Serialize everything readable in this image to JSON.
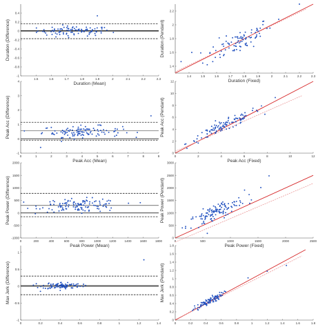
{
  "chart_data": [
    {
      "type": "scatter",
      "variant": "bland-altman",
      "xlabel": "Duration (Mean)",
      "ylabel": "Duration (Difference)",
      "xlim": [
        1.4,
        2.3
      ],
      "ylim": [
        -1.0,
        0.6
      ],
      "xticks": [
        1.5,
        1.6,
        1.7,
        1.8,
        1.9,
        2.0,
        2.1,
        2.2,
        2.3
      ],
      "xtick_labels": [
        "1.5",
        "1.6",
        "1.7",
        "1.8",
        "1.9",
        "2",
        "2.1",
        "2.2",
        "2.3"
      ],
      "yticks": [
        -1.0,
        -0.8,
        -0.6,
        -0.4,
        -0.2,
        0.0,
        0.2,
        0.4
      ],
      "ytick_labels": [
        "-1",
        "-0.8",
        "-0.6",
        "-0.4",
        "-0.2",
        "0",
        "0.2",
        "0.4"
      ],
      "lines": {
        "zero": 0,
        "mean": 0.01,
        "upper": 0.16,
        "lower": -0.17
      },
      "points": {
        "center_x": 1.75,
        "spread_x": 0.12,
        "center_y": 0.0,
        "spread_y": 0.055,
        "count": 90,
        "outliers": [
          [
            1.9,
            0.34
          ],
          [
            1.57,
            -0.09
          ],
          [
            1.63,
            -0.13
          ]
        ]
      }
    },
    {
      "type": "scatter",
      "variant": "correlation",
      "xlabel": "Duration (Fixed)",
      "ylabel": "Duration (Pendant)",
      "xlim": [
        1.3,
        2.3
      ],
      "ylim": [
        1.3,
        2.3
      ],
      "xticks": [
        1.4,
        1.5,
        1.6,
        1.7,
        1.8,
        1.9,
        2.0,
        2.1,
        2.2,
        2.3
      ],
      "xtick_labels": [
        "1.4",
        "1.5",
        "1.6",
        "1.7",
        "1.8",
        "1.9",
        "2",
        "2.1",
        "2.2",
        "2.3"
      ],
      "yticks": [
        1.4,
        1.6,
        1.8,
        2.0,
        2.2
      ],
      "ytick_labels": [
        "1.4",
        "1.6",
        "1.8",
        "2",
        "2.2"
      ],
      "identity_line": [
        [
          1.3,
          1.3
        ],
        [
          2.3,
          2.3
        ]
      ],
      "fit_line": [
        [
          1.3,
          1.32
        ],
        [
          2.25,
          2.23
        ]
      ],
      "points": {
        "center_x": 1.76,
        "spread_x": 0.12,
        "center_y": 1.76,
        "spread_y": 0.14,
        "corr": 0.8,
        "count": 90,
        "outliers": [
          [
            2.2,
            2.32
          ],
          [
            2.05,
            2.08
          ],
          [
            1.42,
            1.6
          ]
        ]
      }
    },
    {
      "type": "scatter",
      "variant": "bland-altman",
      "xlabel": "Peak Acc (Mean)",
      "ylabel": "Peak Acc (Difference)",
      "xlim": [
        0,
        9
      ],
      "ylim": [
        -1.0,
        4.0
      ],
      "xticks": [
        0,
        1,
        2,
        3,
        4,
        5,
        6,
        7,
        8,
        9
      ],
      "xtick_labels": [
        "0",
        "1",
        "2",
        "3",
        "4",
        "5",
        "6",
        "7",
        "8",
        "9"
      ],
      "yticks": [
        -1,
        0,
        1,
        2,
        3,
        4
      ],
      "ytick_labels": [
        "-1",
        "0",
        "1",
        "2",
        "3",
        "4"
      ],
      "lines": {
        "zero": 0,
        "mean": 0.55,
        "upper": 1.15,
        "lower": -0.1
      },
      "points": {
        "center_x": 4.0,
        "spread_x": 1.3,
        "center_y": 0.5,
        "spread_y": 0.2,
        "count": 110,
        "outliers": [
          [
            8.5,
            1.6
          ],
          [
            1.3,
            -0.6
          ],
          [
            3.4,
            0.2
          ]
        ]
      }
    },
    {
      "type": "scatter",
      "variant": "correlation",
      "xlabel": "Peak Acc (Fixed)",
      "ylabel": "Peak Acc (Pendant)",
      "xlim": [
        0,
        12
      ],
      "ylim": [
        0,
        12
      ],
      "xticks": [
        0,
        2,
        4,
        6,
        8,
        10,
        12
      ],
      "xtick_labels": [
        "0",
        "2",
        "4",
        "6",
        "8",
        "10",
        "12"
      ],
      "yticks": [
        0,
        2,
        4,
        6,
        8,
        10,
        12
      ],
      "ytick_labels": [
        "0",
        "2",
        "4",
        "6",
        "8",
        "10",
        "12"
      ],
      "identity_line": [
        [
          0,
          0
        ],
        [
          12,
          12
        ]
      ],
      "fit_line": [
        [
          0,
          0.3
        ],
        [
          11,
          9.6
        ]
      ],
      "points": {
        "center_x": 4.2,
        "spread_x": 1.6,
        "center_y": 4.5,
        "spread_y": 1.5,
        "corr": 0.95,
        "count": 110,
        "outliers": [
          [
            8.7,
            9.3
          ],
          [
            7.5,
            7.9
          ]
        ]
      }
    },
    {
      "type": "scatter",
      "variant": "bland-altman",
      "xlabel": "Peak Power (Mean)",
      "ylabel": "Peak Power (Difference)",
      "xlim": [
        0,
        1800
      ],
      "ylim": [
        -1000,
        2000
      ],
      "xticks": [
        0,
        200,
        400,
        600,
        800,
        1000,
        1200,
        1400,
        1600,
        1800
      ],
      "xtick_labels": [
        "0",
        "200",
        "400",
        "600",
        "800",
        "1000",
        "1200",
        "1400",
        "1600",
        "1800"
      ],
      "yticks": [
        -1000,
        -500,
        0,
        500,
        1000,
        1500,
        2000
      ],
      "ytick_labels": [
        "-1000",
        "-500",
        "0",
        "500",
        "1000",
        "1500",
        "2000"
      ],
      "lines": {
        "zero": 0,
        "mean": 300,
        "upper": 780,
        "lower": -150
      },
      "points": {
        "center_x": 780,
        "spread_x": 260,
        "center_y": 300,
        "spread_y": 130,
        "count": 120,
        "outliers": [
          [
            1560,
            410
          ],
          [
            250,
            160
          ]
        ]
      }
    },
    {
      "type": "scatter",
      "variant": "correlation",
      "xlabel": "Peak Power (Fixed)",
      "ylabel": "Peak Power (Pendant)",
      "xlim": [
        0,
        2500
      ],
      "ylim": [
        0,
        3000
      ],
      "xticks": [
        0,
        500,
        1000,
        1500,
        2000,
        2500
      ],
      "xtick_labels": [
        "0",
        "500",
        "1000",
        "1500",
        "2000",
        "2500"
      ],
      "yticks": [
        0,
        500,
        1000,
        1500,
        2000,
        2500,
        3000
      ],
      "ytick_labels": [
        "0",
        "500",
        "1000",
        "1500",
        "2000",
        "2500",
        "3000"
      ],
      "identity_line": [
        [
          0,
          0
        ],
        [
          2500,
          2500
        ]
      ],
      "fit_line": [
        [
          0,
          -160
        ],
        [
          2500,
          2180
        ]
      ],
      "points": {
        "center_x": 730,
        "spread_x": 260,
        "center_y": 1020,
        "spread_y": 320,
        "corr": 0.85,
        "count": 120,
        "outliers": [
          [
            1700,
            2480
          ],
          [
            1380,
            1520
          ]
        ]
      }
    },
    {
      "type": "scatter",
      "variant": "bland-altman",
      "xlabel": "",
      "ylabel": "Max Jerk (Difference)",
      "xlim": [
        0,
        1.4
      ],
      "ylim": [
        -1.0,
        1.2
      ],
      "xticks": [
        0,
        0.2,
        0.4,
        0.6,
        0.8,
        1.0,
        1.2,
        1.4
      ],
      "xtick_labels": [
        "0",
        "0.2",
        "0.4",
        "0.6",
        "0.8",
        "1",
        "1.2",
        "1.4"
      ],
      "yticks": [
        -1,
        -0.5,
        0,
        0.5,
        1
      ],
      "ytick_labels": [
        "-1",
        "-0.5",
        "0",
        "0.5",
        "1"
      ],
      "lines": {
        "zero": 0,
        "mean": 0.02,
        "upper": 0.3,
        "lower": -0.25
      },
      "points": {
        "center_x": 0.42,
        "spread_x": 0.1,
        "center_y": 0.02,
        "spread_y": 0.05,
        "count": 90,
        "outliers": [
          [
            1.25,
            0.78
          ],
          [
            0.2,
            -0.15
          ]
        ]
      }
    },
    {
      "type": "scatter",
      "variant": "correlation",
      "xlabel": "",
      "ylabel": "Max Jerk (Pendant)",
      "xlim": [
        0,
        1.8
      ],
      "ylim": [
        0,
        1.8
      ],
      "xticks": [
        0,
        0.2,
        0.4,
        0.6,
        0.8,
        1.0,
        1.2,
        1.4,
        1.6,
        1.8
      ],
      "xtick_labels": [
        "0",
        "0.2",
        "0.4",
        "0.6",
        "0.8",
        "1",
        "1.2",
        "1.4",
        "1.6",
        "1.8"
      ],
      "yticks": [
        0,
        0.2,
        0.4,
        0.6,
        0.8,
        1.0,
        1.2,
        1.4,
        1.6,
        1.8
      ],
      "ytick_labels": [
        "0",
        "0.2",
        "0.4",
        "0.6",
        "0.8",
        "1",
        "1.2",
        "1.4",
        "1.6",
        "1.8"
      ],
      "identity_line": [
        [
          0,
          0
        ],
        [
          1.7,
          1.7
        ]
      ],
      "fit_line": [
        [
          0,
          0.01
        ],
        [
          1.65,
          1.55
        ]
      ],
      "points": {
        "center_x": 0.42,
        "spread_x": 0.1,
        "center_y": 0.43,
        "spread_y": 0.11,
        "corr": 0.92,
        "count": 90,
        "outliers": [
          [
            1.45,
            1.32
          ],
          [
            1.2,
            1.18
          ],
          [
            0.95,
            1.02
          ]
        ]
      }
    }
  ],
  "colors": {
    "point": "#1f4fbf",
    "identity": "#d62728",
    "fit": "#e88a8a",
    "axis": "#555555",
    "limit": "#222222"
  }
}
